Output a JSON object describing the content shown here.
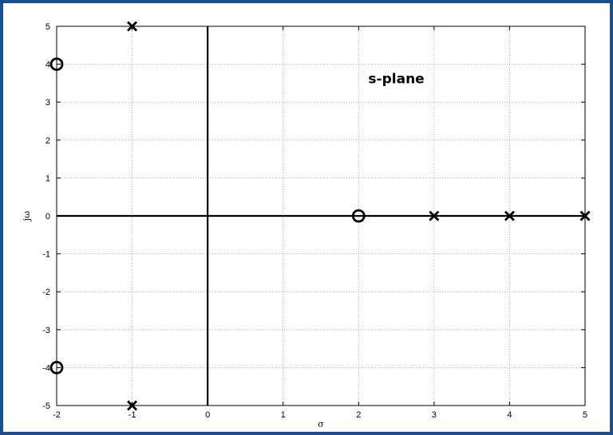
{
  "chart_data": {
    "type": "scatter",
    "title": "",
    "xlabel": "σ",
    "ylabel": "jω",
    "xlim": [
      -2,
      5
    ],
    "ylim": [
      -5,
      5
    ],
    "xticks": [
      "-2",
      "-1",
      "0",
      "1",
      "2",
      "3",
      "4",
      "5"
    ],
    "yticks": [
      "-5",
      "-4",
      "-3",
      "-2",
      "-1",
      "0",
      "1",
      "2",
      "3",
      "4",
      "5"
    ],
    "grid": true,
    "annotations": [
      {
        "text": "s-plane",
        "x": 2.5,
        "y": 3.5
      }
    ],
    "series": [
      {
        "marker": "x",
        "points": [
          {
            "x": -1,
            "y": 5
          },
          {
            "x": -1,
            "y": -5
          },
          {
            "x": 3,
            "y": 0
          },
          {
            "x": 4,
            "y": 0
          },
          {
            "x": 5,
            "y": 0
          }
        ]
      },
      {
        "marker": "o",
        "points": [
          {
            "x": -2,
            "y": 4
          },
          {
            "x": -2,
            "y": -4
          },
          {
            "x": 2,
            "y": 0
          }
        ]
      }
    ]
  }
}
